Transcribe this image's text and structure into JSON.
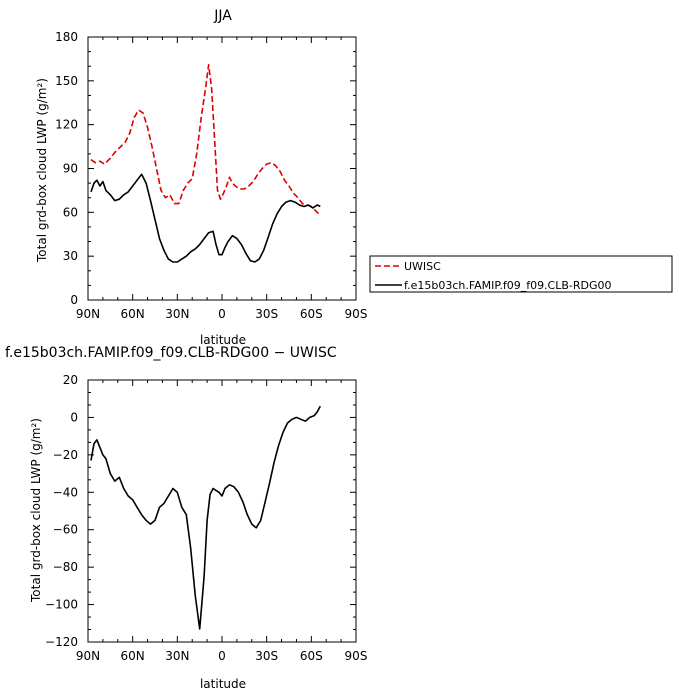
{
  "chart_data": [
    {
      "type": "line",
      "title": "JJA",
      "xlabel": "latitude",
      "ylabel": "Total grd-box cloud LWP (g/m²)",
      "xlim": [
        90,
        -90
      ],
      "ylim": [
        0,
        180
      ],
      "x_ticks": [
        "90N",
        "60N",
        "30N",
        "0",
        "30S",
        "60S",
        "90S"
      ],
      "x_tick_values": [
        90,
        60,
        30,
        0,
        -30,
        -60,
        -90
      ],
      "y_ticks": [
        "0",
        "30",
        "60",
        "90",
        "120",
        "150",
        "180"
      ],
      "y_tick_values": [
        0,
        30,
        60,
        90,
        120,
        150,
        180
      ],
      "legend_position": "right",
      "series": [
        {
          "name": "UWISC",
          "color": "#e00000",
          "dashed": true,
          "x": [
            88,
            85,
            82,
            79,
            75,
            72,
            69,
            65,
            62,
            59,
            56,
            53,
            50,
            47,
            44,
            41,
            38,
            35,
            32,
            29,
            26,
            23,
            20,
            17,
            14,
            11,
            9,
            7,
            5,
            3,
            1,
            -1,
            -3,
            -5,
            -7,
            -9,
            -12,
            -15,
            -18,
            -21,
            -24,
            -27,
            -30,
            -33,
            -36,
            -39,
            -42,
            -45,
            -48,
            -51,
            -54,
            -57,
            -60,
            -63,
            -66
          ],
          "y": [
            96,
            94,
            95,
            93,
            97,
            101,
            104,
            108,
            114,
            125,
            130,
            128,
            118,
            105,
            90,
            75,
            70,
            72,
            66,
            66,
            75,
            80,
            83,
            100,
            125,
            145,
            161,
            145,
            110,
            75,
            69,
            73,
            78,
            84,
            80,
            78,
            76,
            76,
            78,
            81,
            86,
            90,
            93,
            94,
            92,
            88,
            82,
            78,
            73,
            70,
            66,
            65,
            64,
            61,
            58
          ]
        },
        {
          "name": "f.e15b03ch.FAMIP.f09_f09.CLB-RDG00",
          "color": "#000000",
          "dashed": false,
          "x": [
            88,
            86,
            84,
            82,
            80,
            78,
            75,
            72,
            69,
            66,
            63,
            60,
            57,
            54,
            51,
            48,
            45,
            42,
            39,
            36,
            33,
            30,
            27,
            24,
            21,
            18,
            15,
            12,
            9,
            6,
            4,
            2,
            0,
            -2,
            -4,
            -7,
            -10,
            -13,
            -16,
            -19,
            -22,
            -25,
            -28,
            -31,
            -34,
            -37,
            -40,
            -43,
            -46,
            -49,
            -52,
            -55,
            -58,
            -61,
            -64,
            -66
          ],
          "y": [
            74,
            80,
            82,
            78,
            81,
            75,
            72,
            68,
            69,
            72,
            74,
            78,
            82,
            86,
            80,
            68,
            55,
            42,
            34,
            28,
            26,
            26,
            28,
            30,
            33,
            35,
            38,
            42,
            46,
            47,
            38,
            31,
            31,
            36,
            40,
            44,
            42,
            38,
            32,
            27,
            26,
            28,
            34,
            43,
            52,
            59,
            64,
            67,
            68,
            67,
            65,
            64,
            65,
            63,
            65,
            64
          ]
        }
      ]
    },
    {
      "type": "line",
      "title": "f.e15b03ch.FAMIP.f09_f09.CLB-RDG00 − UWISC",
      "xlabel": "latitude",
      "ylabel": "Total grd-box cloud LWP (g/m²)",
      "xlim": [
        90,
        -90
      ],
      "ylim": [
        -120,
        20
      ],
      "x_ticks": [
        "90N",
        "60N",
        "30N",
        "0",
        "30S",
        "60S",
        "90S"
      ],
      "x_tick_values": [
        90,
        60,
        30,
        0,
        -30,
        -60,
        -90
      ],
      "y_ticks": [
        "20",
        "0",
        "−20",
        "−40",
        "−60",
        "−80",
        "−100",
        "−120"
      ],
      "y_tick_values": [
        20,
        0,
        -20,
        -40,
        -60,
        -80,
        -100,
        -120
      ],
      "series": [
        {
          "color": "#000000",
          "dashed": false,
          "x": [
            88,
            86,
            84,
            82,
            80,
            78,
            75,
            72,
            69,
            66,
            63,
            60,
            57,
            54,
            51,
            48,
            45,
            42,
            39,
            36,
            33,
            30,
            27,
            24,
            21,
            18,
            15,
            12,
            10,
            8,
            6,
            4,
            2,
            0,
            -2,
            -5,
            -8,
            -11,
            -14,
            -17,
            -20,
            -23,
            -26,
            -29,
            -32,
            -35,
            -38,
            -41,
            -44,
            -47,
            -50,
            -53,
            -56,
            -59,
            -62,
            -64,
            -66
          ],
          "y": [
            -23,
            -14,
            -12,
            -16,
            -20,
            -22,
            -30,
            -34,
            -32,
            -38,
            -42,
            -44,
            -48,
            -52,
            -55,
            -57,
            -55,
            -48,
            -46,
            -42,
            -38,
            -40,
            -48,
            -52,
            -70,
            -95,
            -113,
            -85,
            -55,
            -41,
            -38,
            -39,
            -40,
            -42,
            -38,
            -36,
            -37,
            -40,
            -45,
            -52,
            -57,
            -59,
            -55,
            -45,
            -35,
            -24,
            -15,
            -8,
            -3,
            -1,
            0,
            -1,
            -2,
            0,
            1,
            3,
            6
          ]
        }
      ]
    }
  ]
}
